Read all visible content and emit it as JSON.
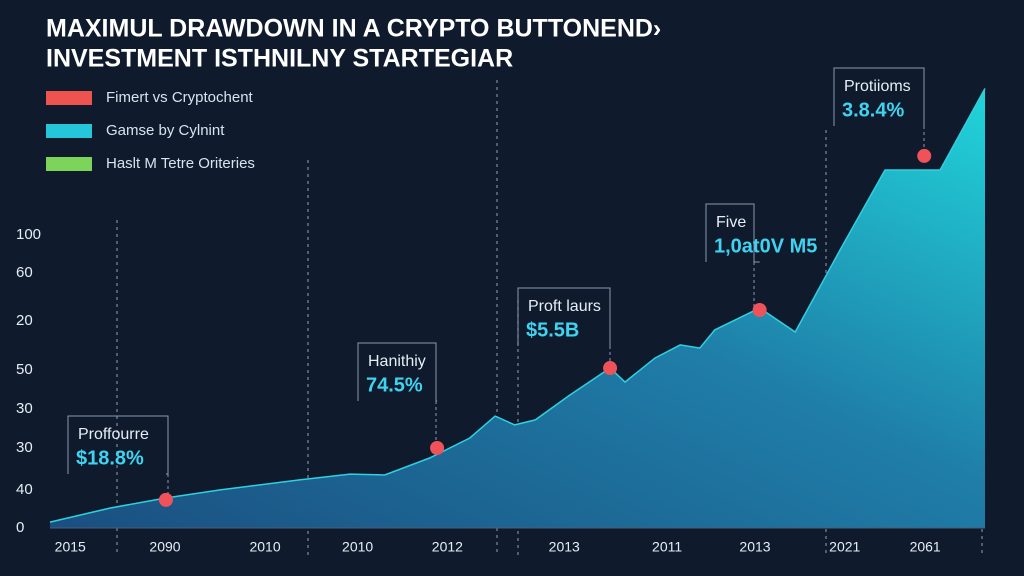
{
  "chart_data": {
    "type": "area",
    "title": [
      "MAXIMUL DRAWDOWN IN A CRYPTO BUTTONEND›",
      "INVESTMENT ISTHNILNY STARTEGIAR"
    ],
    "series_legend": [
      {
        "name": "Fimert vs Cryptochent",
        "color": "#ef5350"
      },
      {
        "name": "Gamse by Cylnint",
        "color": "#26c6da"
      },
      {
        "name": "Haslt M Tetre Oriteries",
        "color": "#7cd45a"
      }
    ],
    "y_axis_labels": [
      "100",
      "60",
      "20",
      "50",
      "30",
      "30",
      "40",
      "0"
    ],
    "x": [
      0,
      6.4,
      12.3,
      18.2,
      26.7,
      32.1,
      35.8,
      40.6,
      44.9,
      47.6,
      49.7,
      51.9,
      55.6,
      59.9,
      61.5,
      64.7,
      67.4,
      69.5,
      71.1,
      75.9,
      79.7,
      84.5,
      89.3,
      95.2,
      100
    ],
    "values": [
      2,
      6.8,
      10.2,
      13,
      16.4,
      18.4,
      18.1,
      23.9,
      30.7,
      38.2,
      35.2,
      36.9,
      45.4,
      54.6,
      49.8,
      58,
      62.5,
      61.4,
      67.6,
      75.1,
      66.9,
      94.9,
      122.2,
      122.2,
      150
    ],
    "xlim": [
      0,
      100
    ],
    "ylim": [
      0,
      152
    ],
    "xticks": [
      {
        "value": 0.5,
        "label": "2015"
      },
      {
        "value": 12.3,
        "label": "2090"
      },
      {
        "value": 23,
        "label": "2010"
      },
      {
        "value": 32.9,
        "label": "2010"
      },
      {
        "value": 42.5,
        "label": "2012"
      },
      {
        "value": 55,
        "label": "2013"
      },
      {
        "value": 66,
        "label": "2011"
      },
      {
        "value": 75.4,
        "label": "2013"
      },
      {
        "value": 85,
        "label": "2021"
      },
      {
        "value": 93.6,
        "label": "2061"
      }
    ],
    "annotations": [
      {
        "x": 12.4,
        "y": 9.6,
        "title": "Proffourre",
        "value": "$18.8%"
      },
      {
        "x": 41.4,
        "y": 27.3,
        "title": "Hanithiy",
        "value": "74.5%"
      },
      {
        "x": 59.9,
        "y": 54.6,
        "title": "Proft laurs",
        "value": "$5.5B"
      },
      {
        "x": 75.9,
        "y": 74.4,
        "title": "Five",
        "value": "1,0at0V M5"
      },
      {
        "x": 93.5,
        "y": 127,
        "title": "Protiioms",
        "value": "3.8.4%"
      }
    ],
    "marker_color": "#f0525a"
  }
}
